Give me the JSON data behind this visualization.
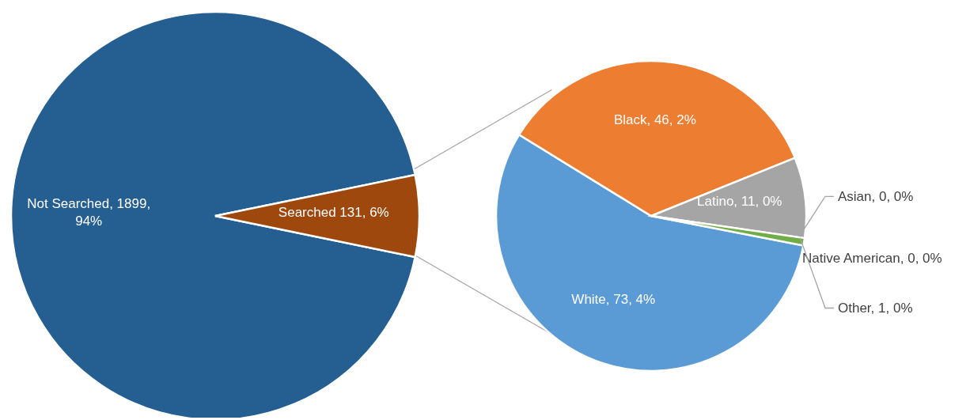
{
  "chart_data": [
    {
      "type": "pie",
      "categories": [
        "Not Searched",
        "Searched"
      ],
      "values": [
        1899,
        131
      ],
      "colors": [
        "#255e91",
        "#9e480e"
      ],
      "value_labels": [
        ", 1899, 94%",
        " 131, 6%"
      ]
    },
    {
      "type": "pie",
      "categories": [
        "White",
        "Black",
        "Latino",
        "Asian",
        "Native American",
        "Other"
      ],
      "values": [
        73,
        46,
        11,
        0,
        0,
        1
      ],
      "colors": [
        "#5b9bd5",
        "#ed7d31",
        "#a5a5a5",
        "#ffc000",
        "#4472c4",
        "#70ad47"
      ],
      "value_labels": [
        ", 73, 4%",
        ", 46, 2%",
        ", 11, 0%",
        ", 0, 0%",
        ", 0, 0%",
        ", 1, 0%"
      ]
    }
  ]
}
